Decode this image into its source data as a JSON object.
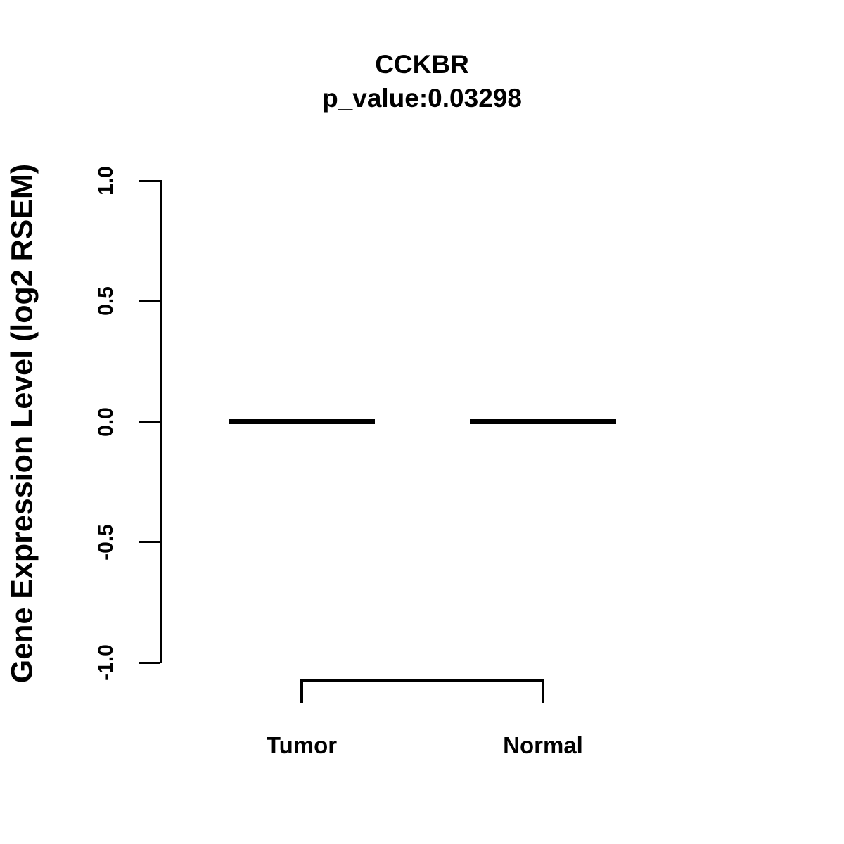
{
  "figure": {
    "title": "CCKBR",
    "subtitle": "p_value:0.03298",
    "ylabel": "Gene Expression Level (log2 RSEM)"
  },
  "chart_data": {
    "type": "boxplot",
    "title": "CCKBR",
    "subtitle": "p_value:0.03298",
    "xlabel": "",
    "ylabel": "Gene Expression Level (log2 RSEM)",
    "ylim": [
      -1.0,
      1.0
    ],
    "y_ticks": [
      {
        "value": 1.0,
        "label": "1.0"
      },
      {
        "value": 0.5,
        "label": "0.5"
      },
      {
        "value": 0.0,
        "label": "0.0"
      },
      {
        "value": -0.5,
        "label": "-0.5"
      },
      {
        "value": -1.0,
        "label": "-1.0"
      }
    ],
    "categories": [
      "Tumor",
      "Normal"
    ],
    "series": [
      {
        "name": "Tumor",
        "median": 0.0,
        "q1": 0.0,
        "q3": 0.0,
        "min": 0.0,
        "max": 0.0
      },
      {
        "name": "Normal",
        "median": 0.0,
        "q1": 0.0,
        "q3": 0.0,
        "min": 0.0,
        "max": 0.0
      }
    ],
    "grid": false,
    "legend": "none",
    "colors": {
      "foreground": "#000000",
      "background": "#ffffff"
    },
    "annotations": [
      {
        "type": "comparison-bracket",
        "between": [
          "Tumor",
          "Normal"
        ],
        "position": "below-axis"
      }
    ]
  }
}
